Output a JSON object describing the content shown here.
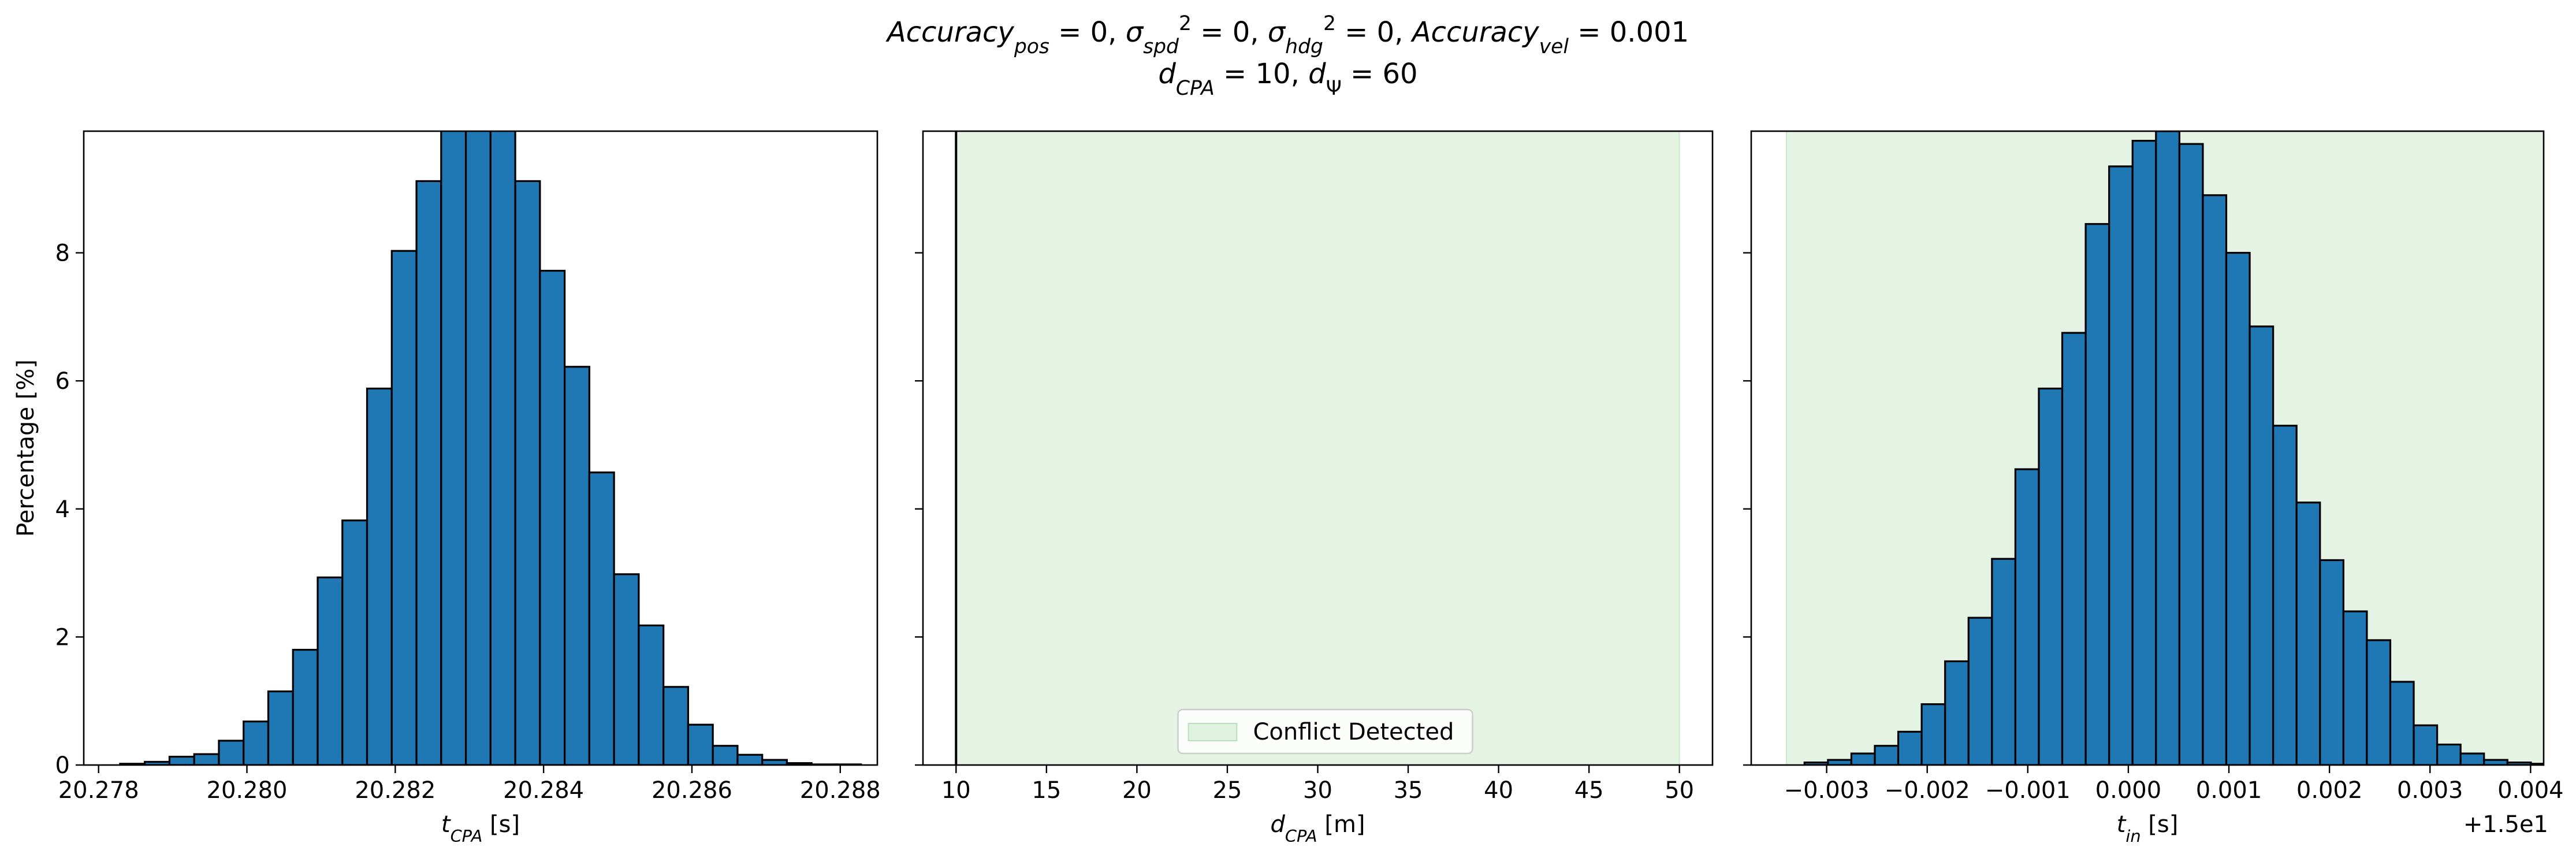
{
  "figure": {
    "title_line1": {
      "parts": [
        {
          "t": "Accuracy",
          "i": true
        },
        {
          "t": "pos",
          "i": true,
          "sub": true
        },
        {
          "t": " = 0, "
        },
        {
          "t": "σ",
          "i": true
        },
        {
          "t": "spd",
          "i": true,
          "sub": true
        },
        {
          "t": "2",
          "sup": true
        },
        {
          "t": " = 0, "
        },
        {
          "t": "σ",
          "i": true
        },
        {
          "t": "hdg",
          "i": true,
          "sub": true
        },
        {
          "t": "2",
          "sup": true
        },
        {
          "t": " = 0, "
        },
        {
          "t": "Accuracy",
          "i": true
        },
        {
          "t": "vel",
          "i": true,
          "sub": true
        },
        {
          "t": " = 0.001"
        }
      ]
    },
    "title_line2": {
      "parts": [
        {
          "t": "d",
          "i": true
        },
        {
          "t": "CPA",
          "i": true,
          "sub": true
        },
        {
          "t": " = 10, "
        },
        {
          "t": "d",
          "i": true
        },
        {
          "t": "Ψ",
          "sub": true
        },
        {
          "t": " = 60"
        }
      ]
    },
    "bar_color": "#1f77b4",
    "shade_color": "#2ca02c"
  },
  "chart_data": [
    {
      "type": "bar",
      "id": "tcpa",
      "xlabel_parts": [
        {
          "t": "t",
          "i": true
        },
        {
          "t": "CPA",
          "i": true,
          "sub": true
        },
        {
          "t": " [s]"
        }
      ],
      "ylabel": "Percentage [%]",
      "xlim": [
        20.2778,
        20.2885
      ],
      "ylim": [
        0,
        9.9
      ],
      "xticks": [
        20.278,
        20.28,
        20.282,
        20.284,
        20.286,
        20.288
      ],
      "xtick_labels": [
        "20.278",
        "20.280",
        "20.282",
        "20.284",
        "20.286",
        "20.288"
      ],
      "yticks": [
        0,
        2,
        4,
        6,
        8
      ],
      "ytick_labels": [
        "0",
        "2",
        "4",
        "6",
        "8"
      ],
      "bin_start": 20.27829,
      "bin_width": 0.000333,
      "values": [
        0.02,
        0.05,
        0.13,
        0.17,
        0.38,
        0.68,
        1.15,
        1.8,
        2.93,
        3.82,
        5.88,
        8.03,
        9.12,
        10.5,
        11.6,
        10.9,
        9.12,
        7.72,
        6.22,
        4.57,
        2.98,
        2.18,
        1.22,
        0.63,
        0.3,
        0.16,
        0.08,
        0.03,
        0.01,
        0.01
      ]
    },
    {
      "type": "bar",
      "id": "dcpa",
      "xlabel_parts": [
        {
          "t": "d",
          "i": true
        },
        {
          "t": "CPA",
          "i": true,
          "sub": true
        },
        {
          "t": " [m]"
        }
      ],
      "xlim": [
        8.17,
        51.83
      ],
      "ylim": [
        0,
        9.9
      ],
      "xticks": [
        10,
        15,
        20,
        25,
        30,
        35,
        40,
        45,
        50
      ],
      "xtick_labels": [
        "10",
        "15",
        "20",
        "25",
        "30",
        "35",
        "40",
        "45",
        "50"
      ],
      "yticks": [
        0,
        2,
        4,
        6,
        8
      ],
      "ytick_labels": [
        "",
        "",
        "",
        "",
        ""
      ],
      "shade": [
        10,
        50
      ],
      "vertical_line_x": 10,
      "legend": {
        "label": "Conflict Detected",
        "location": "lower center"
      }
    },
    {
      "type": "bar",
      "id": "tin",
      "xlabel_parts": [
        {
          "t": "t",
          "i": true
        },
        {
          "t": "in",
          "i": true,
          "sub": true
        },
        {
          "t": " [s]"
        }
      ],
      "offset_label": "+1.5e1",
      "xlim": [
        -0.00375,
        0.00413
      ],
      "ylim": [
        0,
        9.9
      ],
      "xticks": [
        -0.003,
        -0.002,
        -0.001,
        0.0,
        0.001,
        0.002,
        0.003,
        0.004
      ],
      "xtick_labels": [
        "−0.003",
        "−0.002",
        "−0.001",
        "0.000",
        "0.001",
        "0.002",
        "0.003",
        "0.004"
      ],
      "yticks": [
        0,
        2,
        4,
        6,
        8
      ],
      "ytick_labels": [
        "",
        "",
        "",
        "",
        ""
      ],
      "shade": [
        -0.0034,
        0.0042
      ],
      "bin_start": -0.00322,
      "bin_width": 0.000233,
      "values": [
        0.04,
        0.08,
        0.18,
        0.3,
        0.52,
        0.95,
        1.62,
        2.3,
        3.22,
        4.62,
        5.88,
        6.75,
        8.45,
        9.35,
        9.75,
        9.9,
        9.7,
        8.9,
        8.0,
        6.85,
        5.3,
        4.1,
        3.2,
        2.4,
        1.95,
        1.3,
        0.62,
        0.32,
        0.18,
        0.08,
        0.04,
        0.02,
        0.02,
        0.01
      ]
    }
  ]
}
